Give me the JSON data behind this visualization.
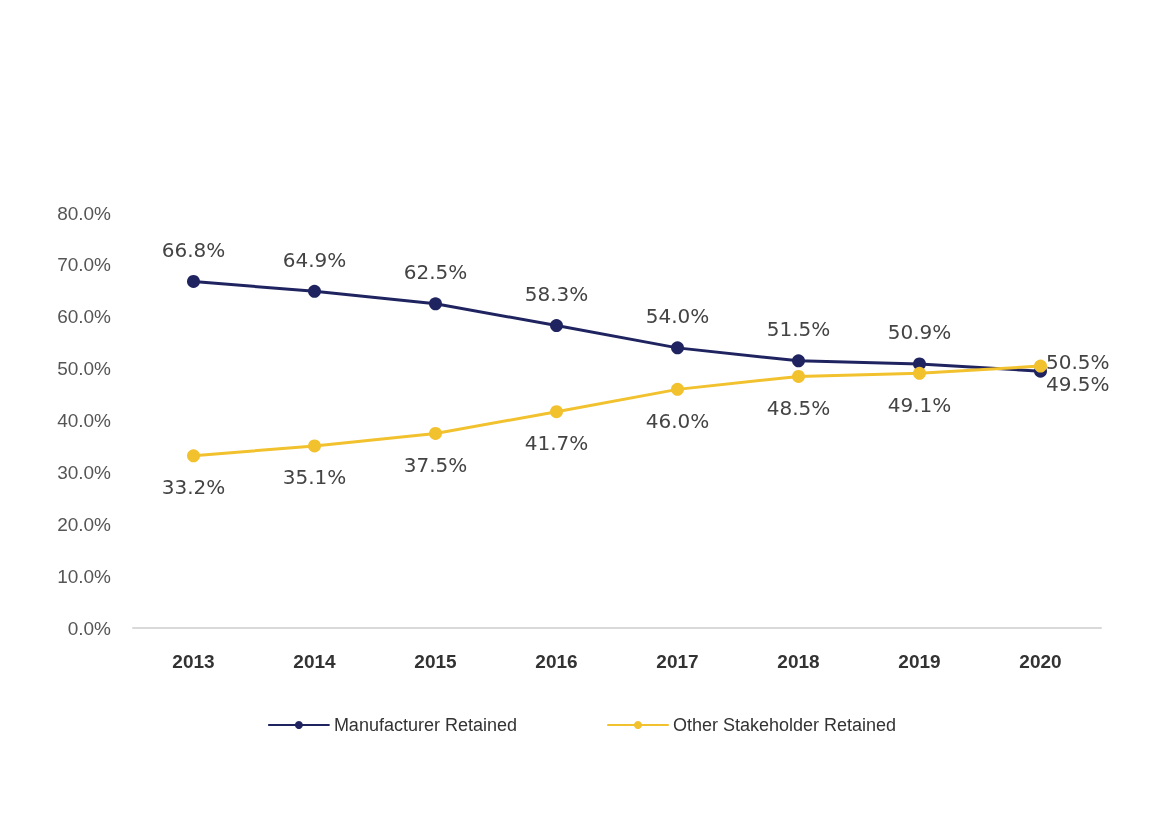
{
  "chart_data": {
    "type": "line",
    "categories": [
      "2013",
      "2014",
      "2015",
      "2016",
      "2017",
      "2018",
      "2019",
      "2020"
    ],
    "series": [
      {
        "name": "Manufacturer Retained",
        "color": "#1f2460",
        "values": [
          66.8,
          64.9,
          62.5,
          58.3,
          54.0,
          51.5,
          50.9,
          49.5
        ],
        "value_labels": [
          "66.8%",
          "64.9%",
          "62.5%",
          "58.3%",
          "54.0%",
          "51.5%",
          "50.9%",
          "49.5%"
        ]
      },
      {
        "name": "Other Stakeholder Retained",
        "color": "#f2c12e",
        "values": [
          33.2,
          35.1,
          37.5,
          41.7,
          46.0,
          48.5,
          49.1,
          50.5
        ],
        "value_labels": [
          "33.2%",
          "35.1%",
          "37.5%",
          "41.7%",
          "46.0%",
          "48.5%",
          "49.1%",
          "50.5%"
        ]
      }
    ],
    "ylim": [
      0,
      80
    ],
    "yticks": [
      {
        "value": 0,
        "label": "0.0%"
      },
      {
        "value": 10,
        "label": "10.0%"
      },
      {
        "value": 20,
        "label": "20.0%"
      },
      {
        "value": 30,
        "label": "30.0%"
      },
      {
        "value": 40,
        "label": "40.0%"
      },
      {
        "value": 50,
        "label": "50.0%"
      },
      {
        "value": 60,
        "label": "60.0%"
      },
      {
        "value": 70,
        "label": "70.0%"
      },
      {
        "value": 80,
        "label": "80.0%"
      }
    ],
    "grid": false,
    "legend": "bottom",
    "marker": "circle",
    "line_style": "solid"
  }
}
